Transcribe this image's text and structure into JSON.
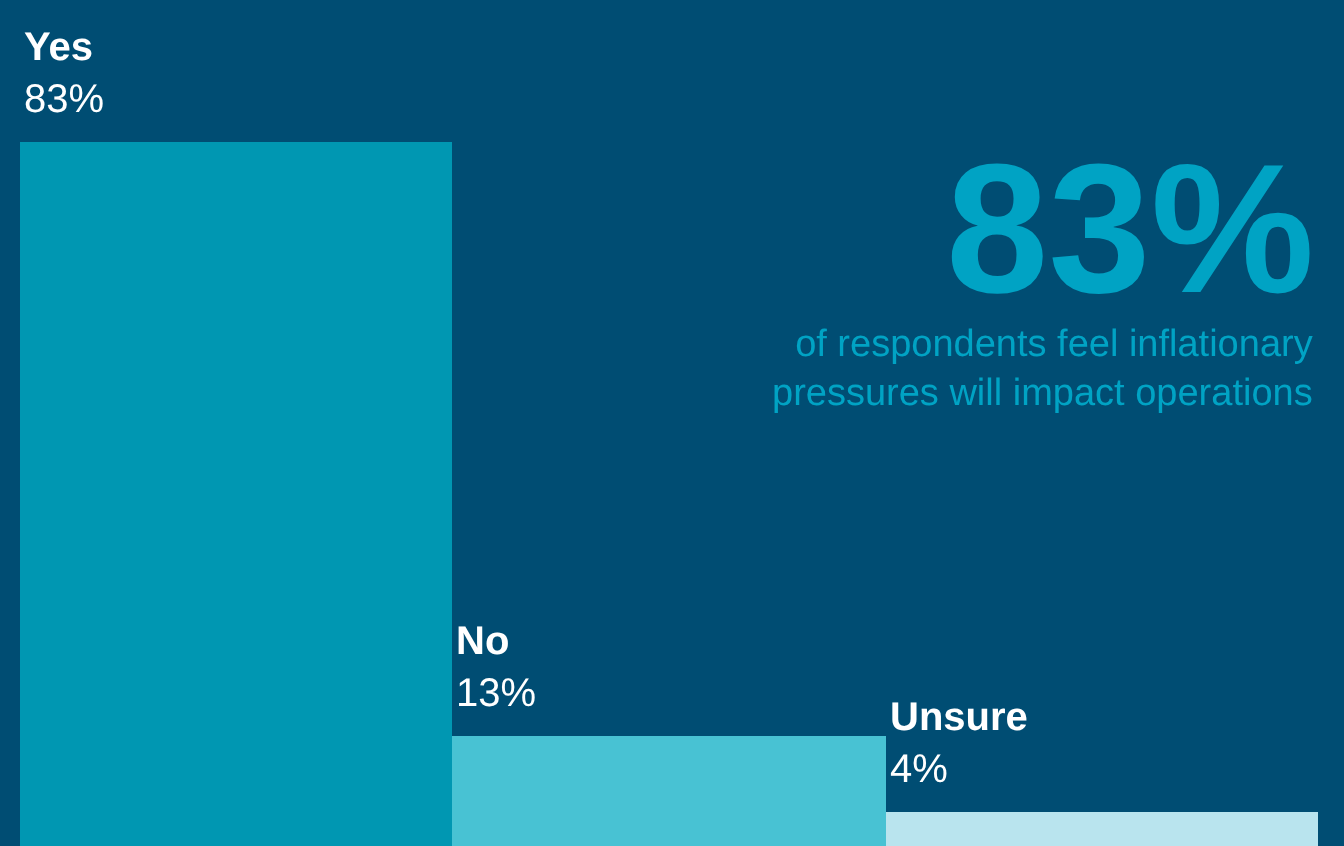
{
  "chart_data": {
    "type": "bar",
    "categories": [
      "Yes",
      "No",
      "Unsure"
    ],
    "values": [
      83,
      13,
      4
    ],
    "colors": [
      "#0097b2",
      "#48c2d3",
      "#b9e4ee"
    ],
    "value_labels": [
      "83%",
      "13%",
      "4%"
    ],
    "annotations": [
      "83%",
      "of respondents feel inflationary pressures will impact operations"
    ]
  }
}
